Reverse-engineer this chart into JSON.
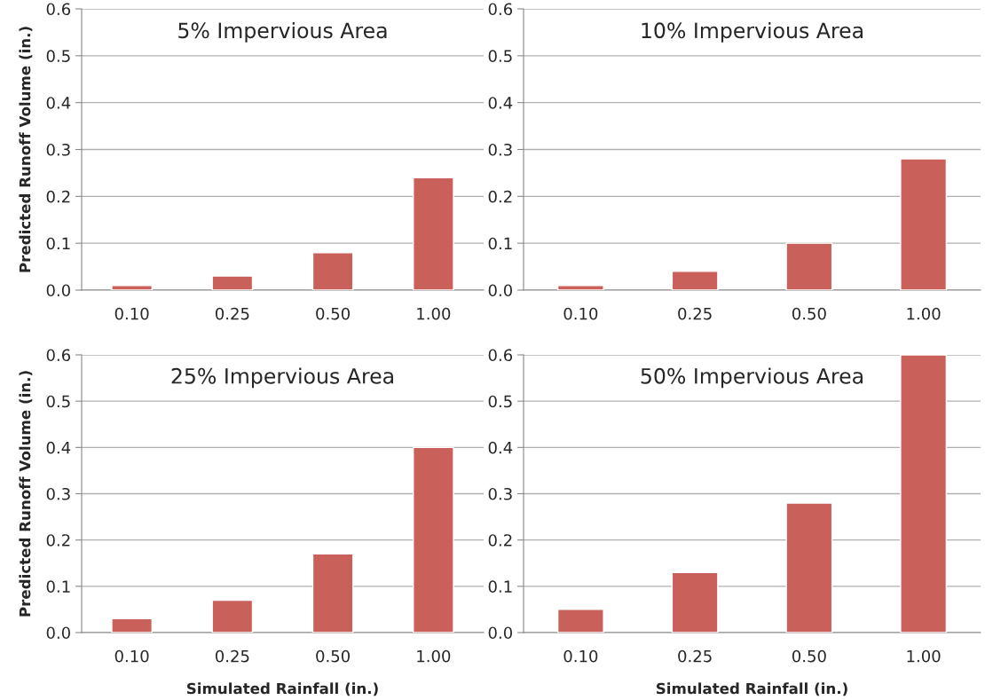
{
  "chart_data": [
    {
      "type": "bar",
      "title": "5% Impervious Area",
      "ylabel": "Predicted Runoff Volume (in.)",
      "categories": [
        "0.10",
        "0.25",
        "0.50",
        "1.00"
      ],
      "values": [
        0.01,
        0.03,
        0.08,
        0.24
      ],
      "color": "#c9605a",
      "ylim": [
        0,
        0.6
      ],
      "yticks": [
        {
          "value": 0,
          "label": "0.0"
        },
        {
          "value": 0.1,
          "label": "0.1"
        },
        {
          "value": 0.2,
          "label": "0.2"
        },
        {
          "value": 0.3,
          "label": "0.3"
        },
        {
          "value": 0.4,
          "label": "0.4"
        },
        {
          "value": 0.5,
          "label": "0.5"
        },
        {
          "value": 0.6,
          "label": "0.6"
        }
      ],
      "grid": "y",
      "legend": false
    },
    {
      "type": "bar",
      "title": "10% Impervious Area",
      "categories": [
        "0.10",
        "0.25",
        "0.50",
        "1.00"
      ],
      "values": [
        0.01,
        0.04,
        0.1,
        0.28
      ],
      "color": "#c9605a",
      "ylim": [
        0,
        0.6
      ],
      "yticks": [
        {
          "value": 0,
          "label": "0.0"
        },
        {
          "value": 0.1,
          "label": "0.1"
        },
        {
          "value": 0.2,
          "label": "0.2"
        },
        {
          "value": 0.3,
          "label": "0.3"
        },
        {
          "value": 0.4,
          "label": "0.4"
        },
        {
          "value": 0.5,
          "label": "0.5"
        },
        {
          "value": 0.6,
          "label": "0.6"
        }
      ],
      "grid": "y",
      "legend": false
    },
    {
      "type": "bar",
      "title": "25% Impervious Area",
      "ylabel": "Predicted Runoff Volume (in.)",
      "xlabel": "Simulated Rainfall (in.)",
      "categories": [
        "0.10",
        "0.25",
        "0.50",
        "1.00"
      ],
      "values": [
        0.03,
        0.07,
        0.17,
        0.4
      ],
      "color": "#c9605a",
      "ylim": [
        0,
        0.6
      ],
      "yticks": [
        {
          "value": 0,
          "label": "0.0"
        },
        {
          "value": 0.1,
          "label": "0.1"
        },
        {
          "value": 0.2,
          "label": "0.2"
        },
        {
          "value": 0.3,
          "label": "0.3"
        },
        {
          "value": 0.4,
          "label": "0.4"
        },
        {
          "value": 0.5,
          "label": "0.5"
        },
        {
          "value": 0.6,
          "label": "0.6"
        }
      ],
      "grid": "y",
      "legend": false
    },
    {
      "type": "bar",
      "title": "50% Impervious Area",
      "xlabel": "Simulated Rainfall (in.)",
      "categories": [
        "0.10",
        "0.25",
        "0.50",
        "1.00"
      ],
      "values": [
        0.05,
        0.13,
        0.28,
        0.6
      ],
      "color": "#c9605a",
      "ylim": [
        0,
        0.6
      ],
      "yticks": [
        {
          "value": 0,
          "label": "0.0"
        },
        {
          "value": 0.1,
          "label": "0.1"
        },
        {
          "value": 0.2,
          "label": "0.2"
        },
        {
          "value": 0.3,
          "label": "0.3"
        },
        {
          "value": 0.4,
          "label": "0.4"
        },
        {
          "value": 0.5,
          "label": "0.5"
        },
        {
          "value": 0.6,
          "label": "0.6"
        }
      ],
      "grid": "y",
      "legend": false
    }
  ]
}
